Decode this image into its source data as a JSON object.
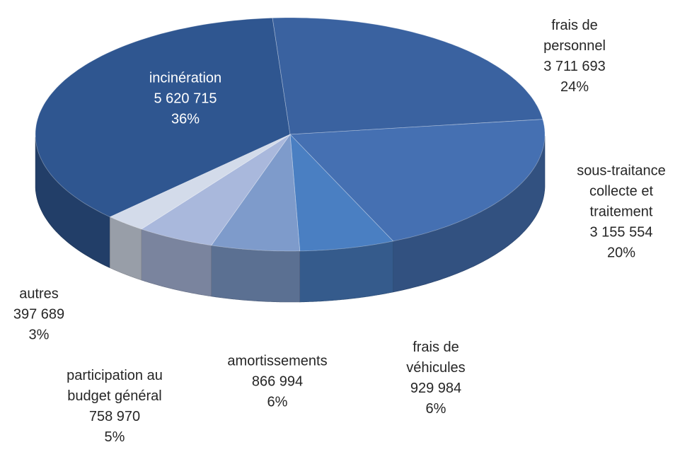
{
  "chart_data": {
    "type": "pie3d",
    "categories": [
      "incinération",
      "frais de personnel",
      "sous-traitance collecte et traitement",
      "frais de véhicules",
      "amortissements",
      "participation au budget général",
      "autres"
    ],
    "values": [
      5620715,
      3711693,
      3155554,
      929984,
      866994,
      758970,
      397689
    ],
    "value_labels": [
      "5 620 715",
      "3 711 693",
      "3 155 554",
      "929 984",
      "866 994",
      "758 970",
      "397 689"
    ],
    "percentages": [
      36,
      24,
      20,
      6,
      6,
      5,
      3
    ],
    "percentage_labels": [
      "36%",
      "24%",
      "20%",
      "6%",
      "6%",
      "5%",
      "3%"
    ],
    "colors": [
      "#2f5690",
      "#3a62a0",
      "#4570b2",
      "#4a7fc2",
      "#7e9bcb",
      "#a9b8dc",
      "#d3dbea"
    ]
  }
}
